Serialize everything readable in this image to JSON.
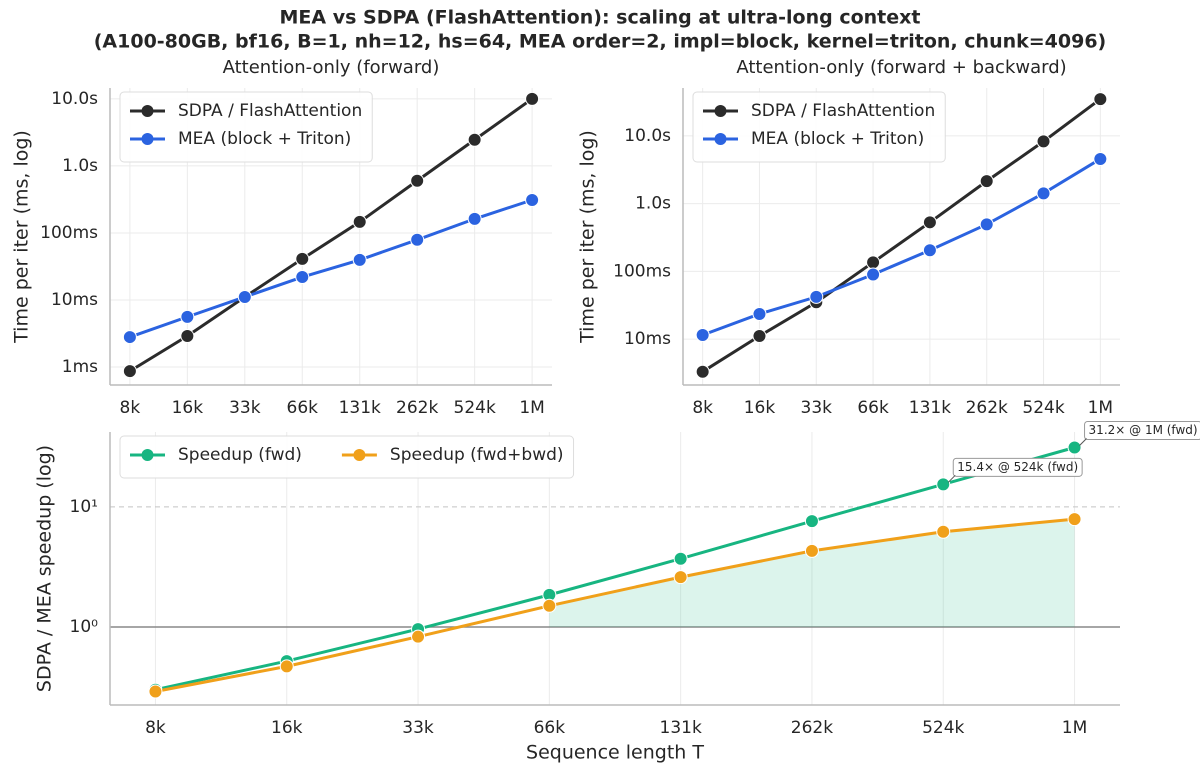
{
  "title": "MEA vs SDPA (FlashAttention): scaling at ultra-long context",
  "subtitle": "(A100-80GB, bf16, B=1, nh=12, hs=64, MEA order=2, impl=block, kernel=triton, chunk=4096)",
  "chart_data": [
    {
      "type": "line",
      "title": "Attention-only (forward)",
      "ylabel": "Time per iter (ms, log)",
      "categories": [
        "8k",
        "16k",
        "33k",
        "66k",
        "131k",
        "262k",
        "524k",
        "1M"
      ],
      "series": [
        {
          "name": "SDPA / FlashAttention",
          "color": "#2b2b2b",
          "values": [
            0.87,
            2.9,
            11.1,
            41,
            146,
            600,
            2450,
            10000
          ]
        },
        {
          "name": "MEA (block + Triton)",
          "color": "#2b63e0",
          "values": [
            2.8,
            5.6,
            11.1,
            22,
            39.6,
            79,
            162,
            310
          ]
        }
      ],
      "log_y": true,
      "ylim": [
        0.54,
        14500
      ],
      "yticks": [
        {
          "value": 1,
          "label": "1ms"
        },
        {
          "value": 10,
          "label": "10ms"
        },
        {
          "value": 100,
          "label": "100ms"
        },
        {
          "value": 1000,
          "label": "1.0s"
        },
        {
          "value": 10000,
          "label": "10.0s"
        }
      ],
      "grid": true,
      "legend": "upper left"
    },
    {
      "type": "line",
      "title": "Attention-only (forward + backward)",
      "ylabel": "Time per iter (ms, log)",
      "categories": [
        "8k",
        "16k",
        "33k",
        "66k",
        "131k",
        "262k",
        "524k",
        "1M"
      ],
      "series": [
        {
          "name": "SDPA / FlashAttention",
          "color": "#2b2b2b",
          "values": [
            3.3,
            11.1,
            35,
            136,
            530,
            2150,
            8300,
            35000
          ]
        },
        {
          "name": "MEA (block + Triton)",
          "color": "#2b63e0",
          "values": [
            11.5,
            23.5,
            42,
            90,
            205,
            495,
            1420,
            4570
          ]
        }
      ],
      "log_y": true,
      "ylim": [
        2.1,
        51000
      ],
      "yticks": [
        {
          "value": 10,
          "label": "10ms"
        },
        {
          "value": 100,
          "label": "100ms"
        },
        {
          "value": 1000,
          "label": "1.0s"
        },
        {
          "value": 10000,
          "label": "10.0s"
        }
      ],
      "grid": true,
      "legend": "upper left"
    },
    {
      "type": "line",
      "ylabel": "SDPA / MEA speedup (log)",
      "xlabel": "Sequence length T",
      "categories": [
        "8k",
        "16k",
        "33k",
        "66k",
        "131k",
        "262k",
        "524k",
        "1M"
      ],
      "series": [
        {
          "name": "Speedup (fwd)",
          "color": "#17b581",
          "values": [
            0.3,
            0.52,
            0.96,
            1.85,
            3.7,
            7.6,
            15.4,
            31.2
          ]
        },
        {
          "name": "Speedup (fwd+bwd)",
          "color": "#f0a01a",
          "values": [
            0.29,
            0.47,
            0.83,
            1.5,
            2.6,
            4.3,
            6.2,
            7.9
          ]
        }
      ],
      "log_y": true,
      "ylim": [
        0.224,
        42
      ],
      "yticks": [
        {
          "value": 1,
          "label": "10⁰"
        },
        {
          "value": 10,
          "label": "10¹"
        }
      ],
      "grid": true,
      "ygrid_style": "dashed",
      "baseline": 1,
      "fill_series": 1,
      "fill_color": "#17b581",
      "legend": "upper left",
      "legend_columns": 2,
      "annotations": [
        {
          "text": "15.4× @ 524k (fwd)",
          "x": "524k",
          "y": 15.4
        },
        {
          "text": "31.2× @ 1M (fwd)",
          "x": "1M",
          "y": 31.2
        }
      ]
    }
  ]
}
